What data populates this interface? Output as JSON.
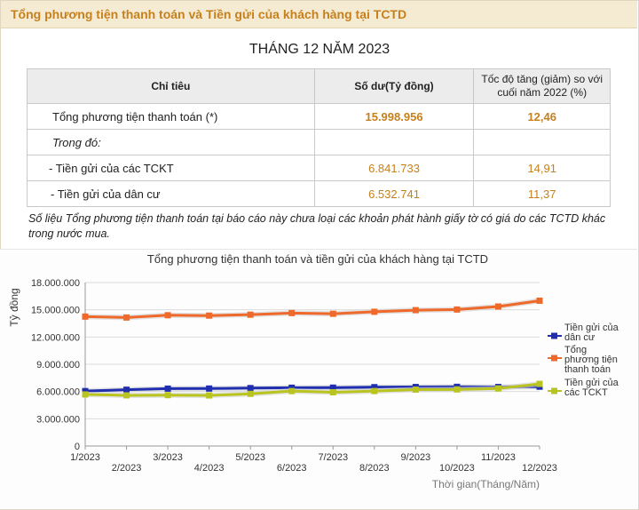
{
  "header": {
    "title": "Tổng phương tiện thanh toán và Tiền gửi của khách hàng tại TCTD"
  },
  "period_title": "THÁNG 12 NĂM 2023",
  "table": {
    "headers": [
      "Chỉ tiêu",
      "Số dư(Tỷ đồng)",
      "Tốc độ tăng (giảm) so với cuối năm 2022 (%)"
    ],
    "rows": [
      {
        "label": "Tổng phương tiện thanh toán (*)",
        "balance": "15.998.956",
        "growth": "12,46"
      },
      {
        "label": "Trong đó:",
        "balance": "",
        "growth": ""
      },
      {
        "label": "- Tiền gửi của các TCKT",
        "balance": "6.841.733",
        "growth": "14,91"
      },
      {
        "label": " - Tiền gửi của dân cư",
        "balance": "6.532.741",
        "growth": "11,37"
      }
    ]
  },
  "note": "Số liệu Tổng phương tiện thanh toán tại báo cáo này chưa loại các khoản phát hành giấy tờ có giá do các TCTD khác trong nước mua.",
  "chart_data": {
    "type": "line",
    "title": "Tổng phương tiện thanh toán và tiền gửi của khách hàng tại TCTD",
    "ylabel": "Tỷ đồng",
    "xlabel": "Thời gian(Tháng/Năm)",
    "categories": [
      "1/2023",
      "2/2023",
      "3/2023",
      "4/2023",
      "5/2023",
      "6/2023",
      "7/2023",
      "8/2023",
      "9/2023",
      "10/2023",
      "11/2023",
      "12/2023"
    ],
    "ylim": [
      0,
      18000000
    ],
    "yticks": [
      0,
      3000000,
      6000000,
      9000000,
      12000000,
      15000000,
      18000000
    ],
    "ytick_labels": [
      "0",
      "3.000.000",
      "6.000.000",
      "9.000.000",
      "12.000.000",
      "15.000.000",
      "18.000.000"
    ],
    "grid": true,
    "legend_position": "right",
    "series": [
      {
        "name": "Tiền gửi của dân cư",
        "color": "#1f2fb0",
        "values": [
          6050000,
          6200000,
          6320000,
          6330000,
          6380000,
          6420000,
          6430000,
          6480000,
          6500000,
          6520000,
          6500000,
          6532741
        ]
      },
      {
        "name": "Tổng phương tiện thanh toán",
        "color": "#ef6a2a",
        "values": [
          14250000,
          14150000,
          14400000,
          14360000,
          14460000,
          14640000,
          14560000,
          14780000,
          14960000,
          15030000,
          15360000,
          15998956
        ]
      },
      {
        "name": "Tiền gửi của các TCKT",
        "color": "#b9c41f",
        "values": [
          5680000,
          5580000,
          5600000,
          5570000,
          5750000,
          6050000,
          5920000,
          6050000,
          6210000,
          6230000,
          6340000,
          6841733
        ]
      }
    ]
  }
}
